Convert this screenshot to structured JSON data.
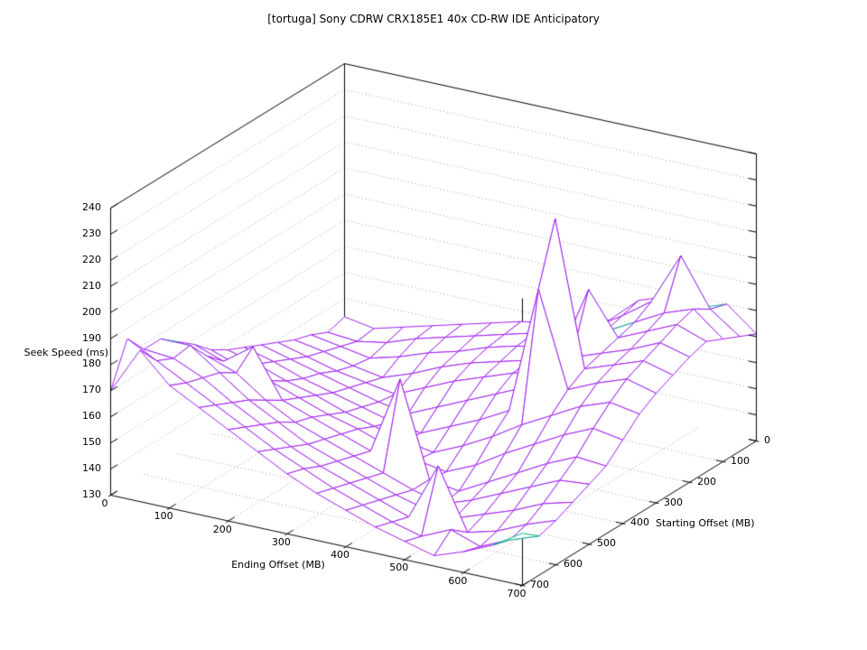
{
  "chart_data": {
    "type": "surface3d",
    "title": "[tortuga] Sony CDRW CRX185E1 40x CD-RW IDE Anticipatory",
    "xlabel": "Ending Offset (MB)",
    "ylabel": "Starting Offset (MB)",
    "zlabel": "Seek Speed (ms)",
    "xlim": [
      0,
      700
    ],
    "ylim": [
      0,
      700
    ],
    "zlim": [
      130,
      240
    ],
    "xticks": [
      0,
      100,
      200,
      300,
      400,
      500,
      600,
      700
    ],
    "yticks": [
      0,
      100,
      200,
      300,
      400,
      500,
      600,
      700
    ],
    "zticks": [
      130,
      140,
      150,
      160,
      170,
      180,
      190,
      200,
      210,
      220,
      230,
      240
    ],
    "grid": true,
    "legend_position": "none",
    "x": [
      0,
      50,
      100,
      150,
      200,
      250,
      300,
      350,
      400,
      450,
      500,
      550,
      600,
      650,
      700
    ],
    "y": [
      0,
      50,
      100,
      150,
      200,
      250,
      300,
      350,
      400,
      450,
      500,
      550,
      600,
      650,
      700
    ],
    "z": [
      [
        143,
        141,
        144,
        147,
        150,
        153,
        156,
        158,
        161,
        164,
        174,
        178,
        176,
        180,
        171
      ],
      [
        141,
        140,
        142,
        146,
        149,
        152,
        155,
        158,
        160,
        165,
        172,
        180,
        200,
        182,
        174
      ],
      [
        144,
        142,
        140,
        143,
        147,
        150,
        154,
        157,
        159,
        163,
        170,
        176,
        182,
        186,
        177
      ],
      [
        146,
        144,
        141,
        139,
        143,
        148,
        152,
        155,
        158,
        162,
        190,
        174,
        179,
        184,
        180
      ],
      [
        149,
        146,
        143,
        141,
        139,
        144,
        149,
        153,
        157,
        160,
        168,
        172,
        176,
        181,
        178
      ],
      [
        152,
        149,
        146,
        143,
        140,
        138,
        143,
        148,
        153,
        158,
        225,
        170,
        174,
        178,
        175
      ],
      [
        155,
        152,
        148,
        145,
        142,
        139,
        137,
        142,
        147,
        153,
        202,
        166,
        171,
        175,
        172
      ],
      [
        158,
        155,
        151,
        148,
        144,
        141,
        138,
        136,
        141,
        147,
        154,
        160,
        166,
        170,
        168
      ],
      [
        162,
        158,
        155,
        151,
        147,
        144,
        140,
        137,
        135,
        140,
        147,
        153,
        159,
        164,
        162
      ],
      [
        168,
        164,
        172,
        154,
        150,
        146,
        142,
        172,
        136,
        134,
        140,
        146,
        152,
        157,
        156
      ],
      [
        173,
        170,
        166,
        158,
        152,
        148,
        144,
        140,
        136,
        133,
        137,
        142,
        147,
        152,
        153
      ],
      [
        178,
        178,
        170,
        162,
        156,
        150,
        146,
        142,
        138,
        135,
        134,
        138,
        142,
        147,
        150
      ],
      [
        178,
        177,
        172,
        165,
        159,
        153,
        148,
        144,
        140,
        136,
        158,
        135,
        138,
        143,
        147
      ],
      [
        186,
        180,
        174,
        168,
        162,
        156,
        151,
        146,
        142,
        138,
        135,
        140,
        136,
        141,
        145
      ],
      [
        170,
        188,
        177,
        171,
        165,
        159,
        153,
        148,
        144,
        140,
        137,
        134,
        138,
        143,
        150
      ]
    ],
    "colors": {
      "surface": "#a020f0",
      "underside": "#00b386",
      "box": "#000000",
      "grid": "#9b9b9b",
      "background": "#ffffff"
    }
  }
}
